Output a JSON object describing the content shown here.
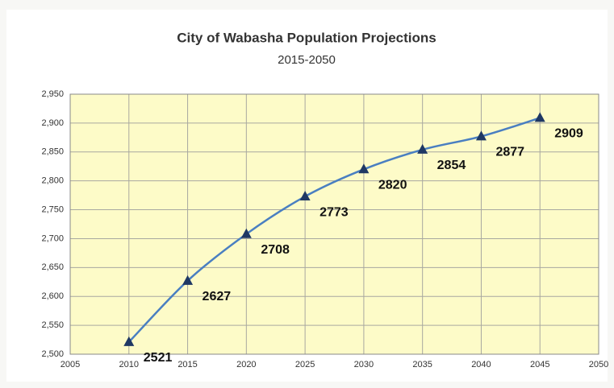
{
  "chart_data": {
    "type": "line",
    "title": "City of Wabasha Population Projections",
    "subtitle": "2015-2050",
    "x": [
      2010,
      2015,
      2020,
      2025,
      2030,
      2035,
      2040,
      2045
    ],
    "values": [
      2521,
      2627,
      2708,
      2773,
      2820,
      2854,
      2877,
      2909
    ],
    "color": "#4a7fc1",
    "marker_color": "#1f3864",
    "xlim": [
      2005,
      2050
    ],
    "xticks": [
      2005,
      2010,
      2015,
      2020,
      2025,
      2030,
      2035,
      2040,
      2045,
      2050
    ],
    "ylim": [
      2500,
      2950
    ],
    "yticks": [
      {
        "value": 2500,
        "label": "2,500"
      },
      {
        "value": 2550,
        "label": "2,550"
      },
      {
        "value": 2600,
        "label": "2,600"
      },
      {
        "value": 2650,
        "label": "2,650"
      },
      {
        "value": 2700,
        "label": "2,700"
      },
      {
        "value": 2750,
        "label": "2,750"
      },
      {
        "value": 2800,
        "label": "2,800"
      },
      {
        "value": 2850,
        "label": "2,850"
      },
      {
        "value": 2900,
        "label": "2,900"
      },
      {
        "value": 2950,
        "label": "2,950"
      }
    ],
    "grid": true
  }
}
